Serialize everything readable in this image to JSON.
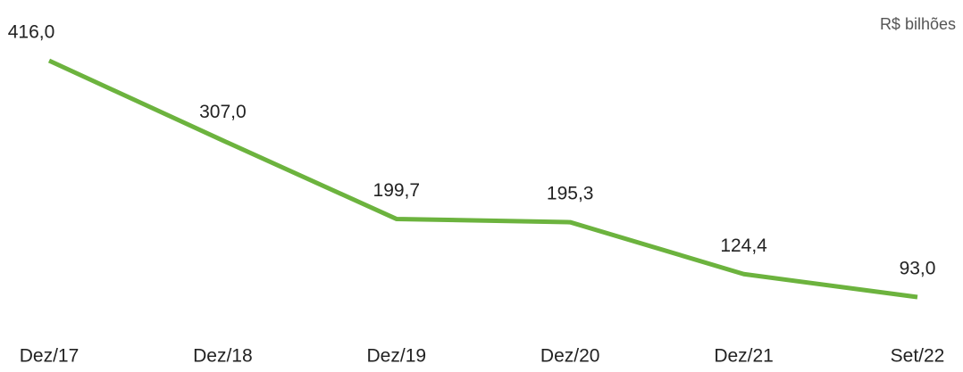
{
  "chart_data": {
    "type": "line",
    "unit_label": "R$ bilhões",
    "categories": [
      "Dez/17",
      "Dez/18",
      "Dez/19",
      "Dez/20",
      "Dez/21",
      "Set/22"
    ],
    "series": [
      {
        "color": "#6cb33e",
        "values": [
          416.0,
          307.0,
          199.7,
          195.3,
          124.4,
          93.0
        ],
        "value_labels": [
          "416,0",
          "307,0",
          "199,7",
          "195,3",
          "124,4",
          "93,0"
        ]
      }
    ]
  }
}
